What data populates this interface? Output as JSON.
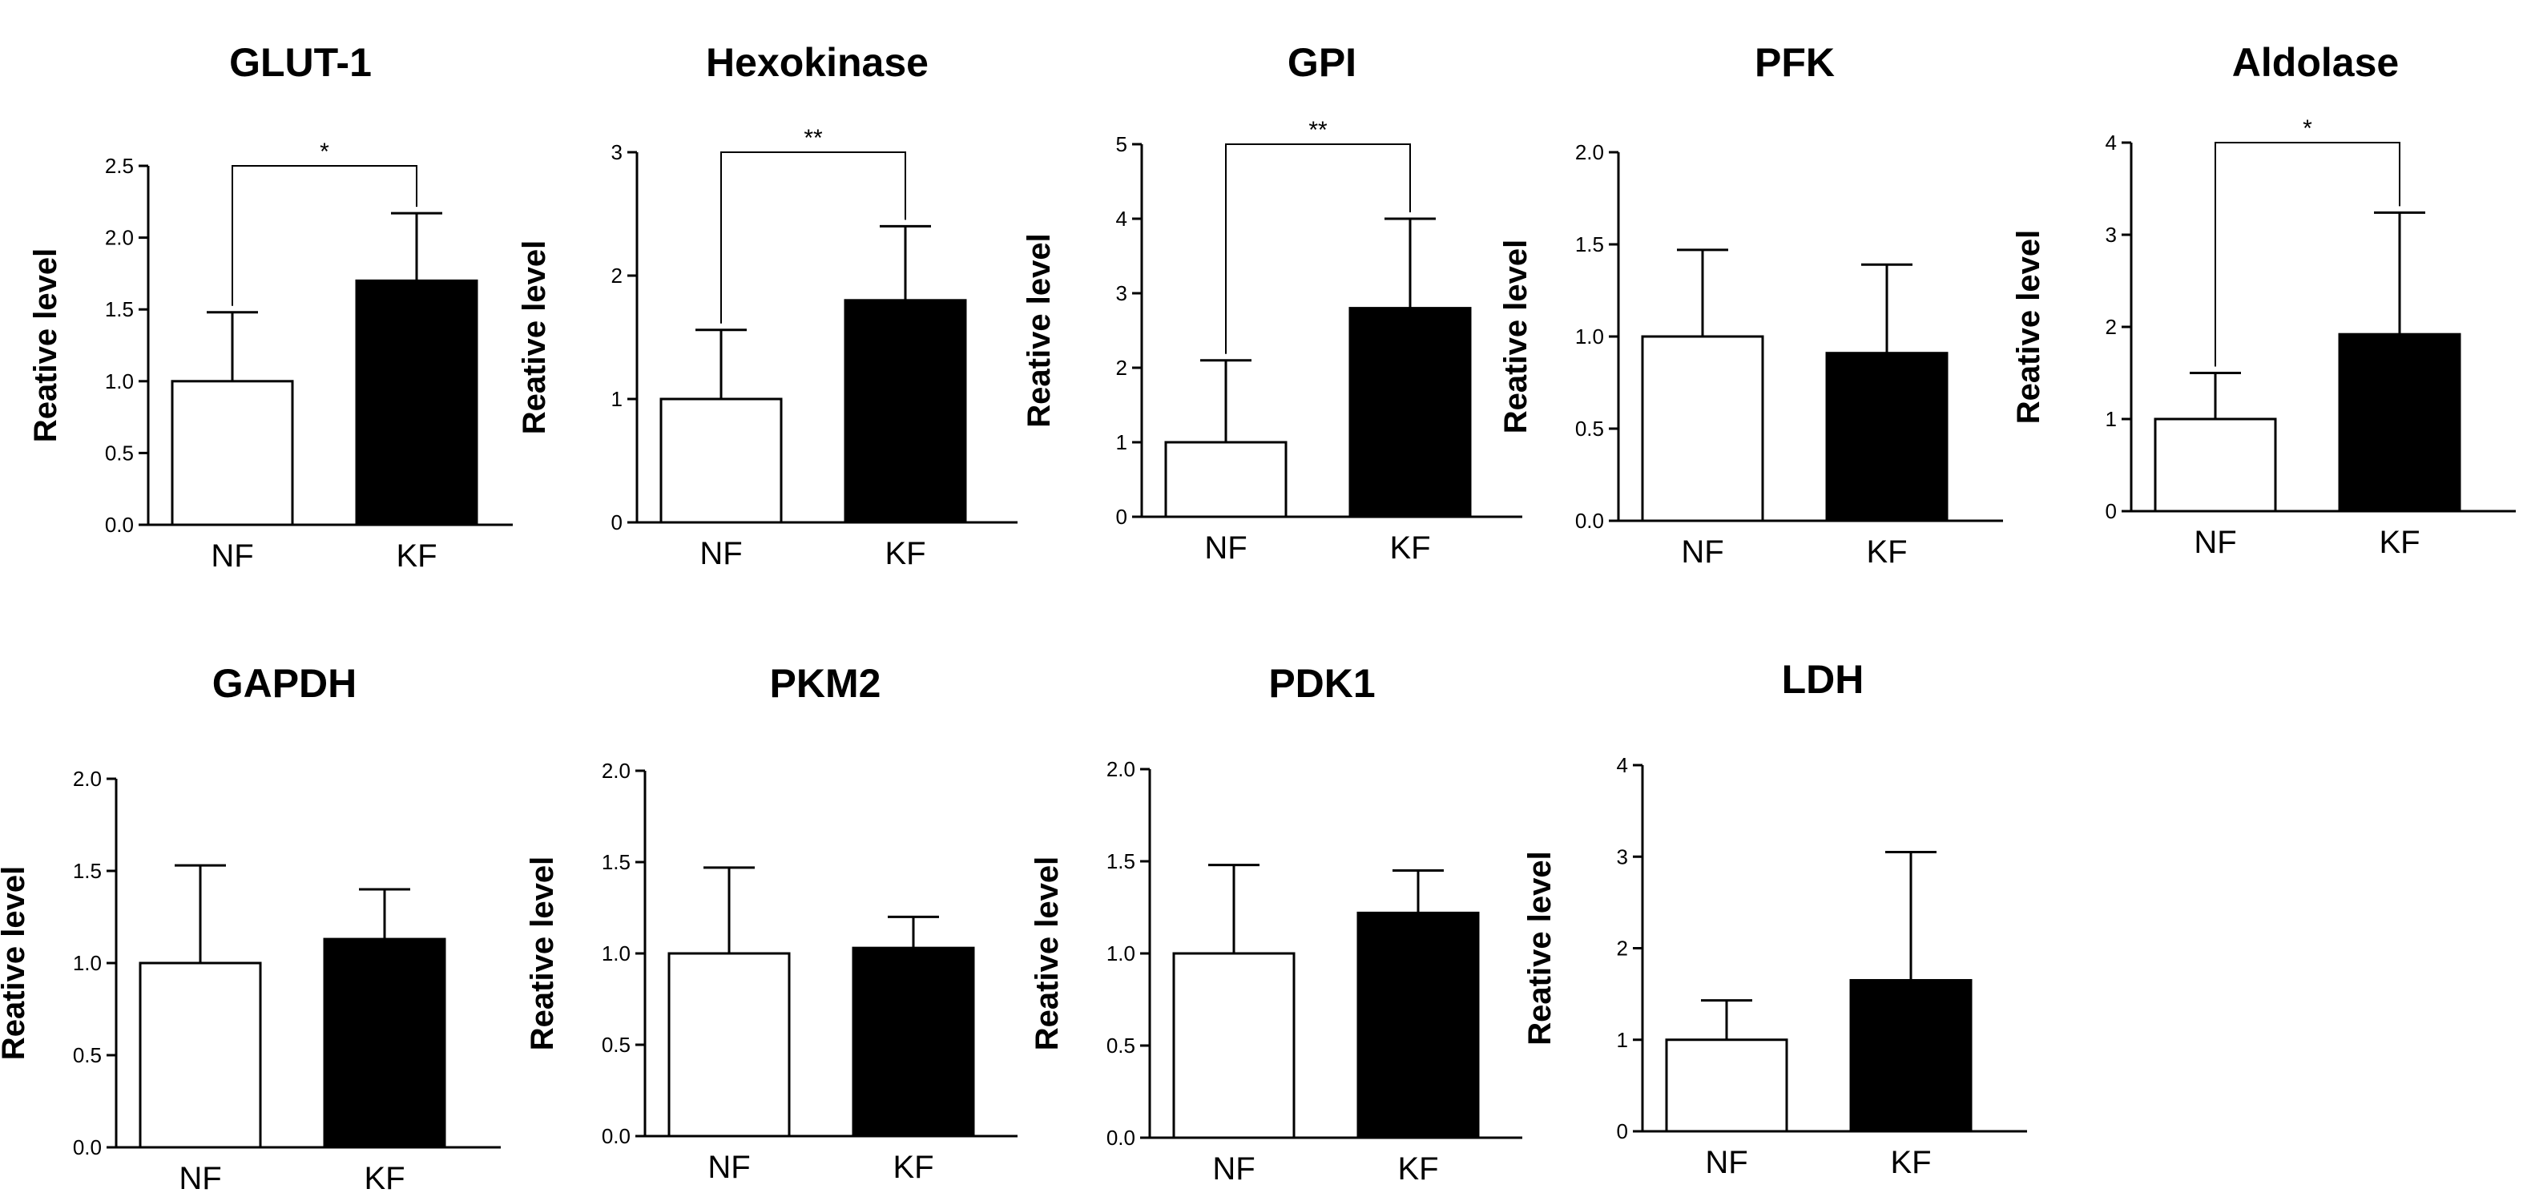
{
  "chart_data": [
    {
      "type": "bar",
      "title": "GLUT-1",
      "ylabel": "Reative level",
      "xlabel": "",
      "categories": [
        "NF",
        "KF"
      ],
      "values": [
        1.0,
        1.7
      ],
      "errors": [
        0.48,
        0.47
      ],
      "ylim": [
        0,
        2.5
      ],
      "yticks": [
        "0.0",
        "0.5",
        "1.0",
        "1.5",
        "2.0",
        "2.5"
      ],
      "significance": "*",
      "bar_colors": [
        "#ffffff",
        "#000000"
      ]
    },
    {
      "type": "bar",
      "title": "Hexokinase",
      "ylabel": "Reative level",
      "xlabel": "",
      "categories": [
        "NF",
        "KF"
      ],
      "values": [
        1.0,
        1.8
      ],
      "errors": [
        0.56,
        0.6
      ],
      "ylim": [
        0,
        3
      ],
      "yticks": [
        "0",
        "1",
        "2",
        "3"
      ],
      "significance": "**",
      "bar_colors": [
        "#ffffff",
        "#000000"
      ]
    },
    {
      "type": "bar",
      "title": "GPI",
      "ylabel": "Reative level",
      "xlabel": "",
      "categories": [
        "NF",
        "KF"
      ],
      "values": [
        1.0,
        2.8
      ],
      "errors": [
        1.1,
        1.2
      ],
      "ylim": [
        0,
        5
      ],
      "yticks": [
        "0",
        "1",
        "2",
        "3",
        "4",
        "5"
      ],
      "significance": "**",
      "bar_colors": [
        "#ffffff",
        "#000000"
      ]
    },
    {
      "type": "bar",
      "title": "PFK",
      "ylabel": "Reative level",
      "xlabel": "",
      "categories": [
        "NF",
        "KF"
      ],
      "values": [
        1.0,
        0.91
      ],
      "errors": [
        0.47,
        0.48
      ],
      "ylim": [
        0,
        2.0
      ],
      "yticks": [
        "0.0",
        "0.5",
        "1.0",
        "1.5",
        "2.0"
      ],
      "significance": "",
      "bar_colors": [
        "#ffffff",
        "#000000"
      ]
    },
    {
      "type": "bar",
      "title": "Aldolase",
      "ylabel": "Reative level",
      "xlabel": "",
      "categories": [
        "NF",
        "KF"
      ],
      "values": [
        1.0,
        1.92
      ],
      "errors": [
        0.5,
        1.32
      ],
      "ylim": [
        0,
        4
      ],
      "yticks": [
        "0",
        "1",
        "2",
        "3",
        "4"
      ],
      "significance": "*",
      "bar_colors": [
        "#ffffff",
        "#000000"
      ]
    },
    {
      "type": "bar",
      "title": "GAPDH",
      "ylabel": "Reative level",
      "xlabel": "",
      "categories": [
        "NF",
        "KF"
      ],
      "values": [
        1.0,
        1.13
      ],
      "errors": [
        0.53,
        0.27
      ],
      "ylim": [
        0,
        2.0
      ],
      "yticks": [
        "0.0",
        "0.5",
        "1.0",
        "1.5",
        "2.0"
      ],
      "significance": "",
      "bar_colors": [
        "#ffffff",
        "#000000"
      ]
    },
    {
      "type": "bar",
      "title": "PKM2",
      "ylabel": "Reative level",
      "xlabel": "",
      "categories": [
        "NF",
        "KF"
      ],
      "values": [
        1.0,
        1.03
      ],
      "errors": [
        0.47,
        0.17
      ],
      "ylim": [
        0,
        2.0
      ],
      "yticks": [
        "0.0",
        "0.5",
        "1.0",
        "1.5",
        "2.0"
      ],
      "significance": "",
      "bar_colors": [
        "#ffffff",
        "#000000"
      ]
    },
    {
      "type": "bar",
      "title": "PDK1",
      "ylabel": "Reative level",
      "xlabel": "",
      "categories": [
        "NF",
        "KF"
      ],
      "values": [
        1.0,
        1.22
      ],
      "errors": [
        0.48,
        0.23
      ],
      "ylim": [
        0,
        2.0
      ],
      "yticks": [
        "0.0",
        "0.5",
        "1.0",
        "1.5",
        "2.0"
      ],
      "significance": "",
      "bar_colors": [
        "#ffffff",
        "#000000"
      ]
    },
    {
      "type": "bar",
      "title": "LDH",
      "ylabel": "Reative level",
      "xlabel": "",
      "categories": [
        "NF",
        "KF"
      ],
      "values": [
        1.0,
        1.65
      ],
      "errors": [
        0.43,
        1.4
      ],
      "ylim": [
        0,
        4
      ],
      "yticks": [
        "0",
        "1",
        "2",
        "3",
        "4"
      ],
      "significance": "",
      "bar_colors": [
        "#ffffff",
        "#000000"
      ]
    }
  ]
}
